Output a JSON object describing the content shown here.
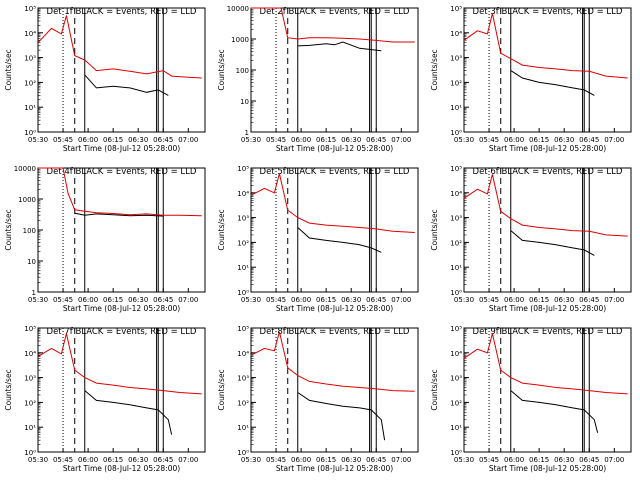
{
  "figure": {
    "xlabel": "Start Time (08-Jul-12 05:28:00)",
    "ylabel": "Counts/sec",
    "xticks": [
      "05:30",
      "05:45",
      "06:00",
      "06:15",
      "06:30",
      "06:45",
      "07:00"
    ],
    "colors": {
      "events": "#000000",
      "lld": "#e00000",
      "axes": "#000000"
    }
  },
  "chart_data": [
    {
      "type": "line",
      "title": "Det 1f BLACK = Events, RED = LLD",
      "log_y": true,
      "xlim": [
        "05:30",
        "07:10"
      ],
      "ylim": [
        1,
        100000
      ],
      "yticks": [
        "10⁰",
        "10¹",
        "10²",
        "10³",
        "10⁴",
        "10⁵"
      ],
      "vlines": {
        "dotted": "05:45",
        "dashed": "05:52",
        "solid": [
          "05:58",
          "06:41",
          "06:42",
          "06:45"
        ]
      },
      "series": [
        {
          "name": "BLACK = Events",
          "x": [
            "05:30",
            "05:40",
            "05:46",
            "05:50",
            "05:52",
            "05:58",
            "06:05",
            "06:15",
            "06:25",
            "06:35",
            "06:42",
            "06:48"
          ],
          "values": [
            null,
            null,
            null,
            null,
            null,
            200,
            60,
            70,
            60,
            40,
            50,
            30
          ]
        },
        {
          "name": "RED = LLD",
          "x": [
            "05:30",
            "05:38",
            "05:44",
            "05:47",
            "05:52",
            "05:58",
            "06:05",
            "06:15",
            "06:25",
            "06:35",
            "06:45",
            "06:50",
            "07:00",
            "07:08"
          ],
          "values": [
            4000,
            15000,
            9000,
            50000,
            1200,
            800,
            300,
            350,
            280,
            220,
            300,
            180,
            160,
            150
          ]
        }
      ]
    },
    {
      "type": "line",
      "title": "Det 2f BLACK = Events, RED = LLD",
      "log_y": true,
      "xlim": [
        "05:30",
        "07:10"
      ],
      "ylim": [
        1,
        10000
      ],
      "yticks": [
        "1",
        "10",
        "100",
        "1000",
        "10000"
      ],
      "vlines": {
        "dotted": "05:45",
        "dashed": "05:52",
        "solid": [
          "05:58",
          "06:41",
          "06:42",
          "06:45"
        ]
      },
      "series": [
        {
          "name": "BLACK = Events",
          "x": [
            "05:58",
            "06:05",
            "06:15",
            "06:20",
            "06:25",
            "06:35",
            "06:48"
          ],
          "values": [
            600,
            620,
            700,
            650,
            800,
            500,
            420
          ]
        },
        {
          "name": "RED = LLD",
          "x": [
            "05:30",
            "05:48",
            "05:52",
            "05:58",
            "06:05",
            "06:15",
            "06:25",
            "06:35",
            "06:45",
            "06:55",
            "07:08"
          ],
          "values": [
            10000,
            10000,
            1100,
            1000,
            1100,
            1100,
            1050,
            1000,
            900,
            800,
            800
          ]
        }
      ]
    },
    {
      "type": "line",
      "title": "Det 3f BLACK = Events, RED = LLD",
      "log_y": true,
      "xlim": [
        "05:30",
        "07:10"
      ],
      "ylim": [
        1,
        100000
      ],
      "yticks": [
        "10⁰",
        "10¹",
        "10²",
        "10³",
        "10⁴",
        "10⁵"
      ],
      "vlines": {
        "dotted": "05:45",
        "dashed": "05:52",
        "solid": [
          "05:58",
          "06:41",
          "06:42",
          "06:45"
        ]
      },
      "series": [
        {
          "name": "BLACK = Events",
          "x": [
            "05:58",
            "06:05",
            "06:15",
            "06:25",
            "06:35",
            "06:42",
            "06:48"
          ],
          "values": [
            300,
            150,
            100,
            80,
            60,
            50,
            30
          ]
        },
        {
          "name": "RED = LLD",
          "x": [
            "05:30",
            "05:38",
            "05:44",
            "05:47",
            "05:52",
            "05:58",
            "06:05",
            "06:15",
            "06:25",
            "06:35",
            "06:45",
            "06:55",
            "07:08"
          ],
          "values": [
            5000,
            12000,
            9000,
            60000,
            1500,
            900,
            500,
            400,
            350,
            300,
            280,
            180,
            150
          ]
        }
      ]
    },
    {
      "type": "line",
      "title": "Det 4f BLACK = Events, RED = LLD",
      "log_y": true,
      "xlim": [
        "05:30",
        "07:10"
      ],
      "ylim": [
        1,
        10000
      ],
      "yticks": [
        "1",
        "10",
        "100",
        "1000",
        "10000"
      ],
      "vlines": {
        "dotted": "05:45",
        "dashed": "05:52",
        "solid": [
          "05:58",
          "06:41",
          "06:42",
          "06:45"
        ]
      },
      "series": [
        {
          "name": "BLACK = Events",
          "x": [
            "05:52",
            "05:58",
            "06:05",
            "06:15",
            "06:25",
            "06:35",
            "06:45"
          ],
          "values": [
            350,
            300,
            330,
            310,
            290,
            300,
            280
          ]
        },
        {
          "name": "RED = LLD",
          "x": [
            "05:30",
            "05:45",
            "05:48",
            "05:52",
            "05:58",
            "06:05",
            "06:15",
            "06:25",
            "06:35",
            "06:45",
            "06:55",
            "07:08"
          ],
          "values": [
            10000,
            10000,
            1500,
            450,
            400,
            360,
            340,
            310,
            330,
            300,
            300,
            290
          ]
        }
      ]
    },
    {
      "type": "line",
      "title": "Det 5f BLACK = Events, RED = LLD",
      "log_y": true,
      "xlim": [
        "05:30",
        "07:10"
      ],
      "ylim": [
        1,
        100000
      ],
      "yticks": [
        "10⁰",
        "10¹",
        "10²",
        "10³",
        "10⁴",
        "10⁵"
      ],
      "vlines": {
        "dotted": "05:45",
        "dashed": "05:52",
        "solid": [
          "05:58",
          "06:41",
          "06:42",
          "06:45"
        ]
      },
      "series": [
        {
          "name": "BLACK = Events",
          "x": [
            "05:58",
            "06:05",
            "06:15",
            "06:25",
            "06:35",
            "06:42",
            "06:48"
          ],
          "values": [
            400,
            150,
            120,
            100,
            80,
            60,
            40
          ]
        },
        {
          "name": "RED = LLD",
          "x": [
            "05:30",
            "05:38",
            "05:44",
            "05:47",
            "05:52",
            "05:58",
            "06:05",
            "06:15",
            "06:25",
            "06:35",
            "06:45",
            "06:55",
            "07:08"
          ],
          "values": [
            8000,
            15000,
            10000,
            60000,
            2000,
            1000,
            600,
            500,
            450,
            400,
            350,
            280,
            250
          ]
        }
      ]
    },
    {
      "type": "line",
      "title": "Det 6f BLACK = Events, RED = LLD",
      "log_y": true,
      "xlim": [
        "05:30",
        "07:10"
      ],
      "ylim": [
        1,
        100000
      ],
      "yticks": [
        "10⁰",
        "10¹",
        "10²",
        "10³",
        "10⁴",
        "10⁵"
      ],
      "vlines": {
        "dotted": "05:45",
        "dashed": "05:52",
        "solid": [
          "05:58",
          "06:41",
          "06:42",
          "06:45"
        ]
      },
      "series": [
        {
          "name": "BLACK = Events",
          "x": [
            "05:58",
            "06:05",
            "06:15",
            "06:25",
            "06:35",
            "06:42",
            "06:48"
          ],
          "values": [
            300,
            120,
            100,
            80,
            60,
            50,
            30
          ]
        },
        {
          "name": "RED = LLD",
          "x": [
            "05:30",
            "05:38",
            "05:44",
            "05:47",
            "05:52",
            "05:58",
            "06:05",
            "06:15",
            "06:25",
            "06:35",
            "06:45",
            "06:55",
            "07:08"
          ],
          "values": [
            6000,
            14000,
            9000,
            55000,
            1800,
            900,
            500,
            400,
            350,
            300,
            280,
            200,
            180
          ]
        }
      ]
    },
    {
      "type": "line",
      "title": "Det 7f BLACK = Events, RED = LLD",
      "log_y": true,
      "xlim": [
        "05:30",
        "07:10"
      ],
      "ylim": [
        1,
        100000
      ],
      "yticks": [
        "10⁰",
        "10¹",
        "10²",
        "10³",
        "10⁴",
        "10⁵"
      ],
      "vlines": {
        "dotted": "05:45",
        "dashed": "05:52",
        "solid": [
          "05:58",
          "06:41",
          "06:42",
          "06:45"
        ]
      },
      "series": [
        {
          "name": "BLACK = Events",
          "x": [
            "05:58",
            "06:05",
            "06:15",
            "06:25",
            "06:35",
            "06:42",
            "06:48",
            "06:50"
          ],
          "values": [
            300,
            120,
            100,
            80,
            60,
            50,
            20,
            5
          ]
        },
        {
          "name": "RED = LLD",
          "x": [
            "05:30",
            "05:38",
            "05:44",
            "05:47",
            "05:52",
            "05:58",
            "06:05",
            "06:15",
            "06:25",
            "06:35",
            "06:45",
            "06:55",
            "07:08"
          ],
          "values": [
            7000,
            15000,
            9000,
            60000,
            2000,
            1000,
            600,
            500,
            400,
            350,
            300,
            250,
            220
          ]
        }
      ]
    },
    {
      "type": "line",
      "title": "Det 8f BLACK = Events, RED = LLD",
      "log_y": true,
      "xlim": [
        "05:30",
        "07:10"
      ],
      "ylim": [
        1,
        100000
      ],
      "yticks": [
        "10⁰",
        "10¹",
        "10²",
        "10³",
        "10⁴",
        "10⁵"
      ],
      "vlines": {
        "dotted": "05:45",
        "dashed": "05:52",
        "solid": [
          "05:58",
          "06:41",
          "06:42",
          "06:45"
        ]
      },
      "series": [
        {
          "name": "BLACK = Events",
          "x": [
            "05:58",
            "06:05",
            "06:15",
            "06:25",
            "06:35",
            "06:42",
            "06:48",
            "06:50"
          ],
          "values": [
            250,
            120,
            90,
            70,
            60,
            50,
            20,
            3
          ]
        },
        {
          "name": "RED = LLD",
          "x": [
            "05:30",
            "05:38",
            "05:44",
            "05:47",
            "05:52",
            "05:58",
            "06:05",
            "06:15",
            "06:25",
            "06:35",
            "06:45",
            "06:55",
            "07:08"
          ],
          "values": [
            8000,
            15000,
            12000,
            70000,
            2500,
            1200,
            700,
            550,
            450,
            400,
            350,
            300,
            280
          ]
        }
      ]
    },
    {
      "type": "line",
      "title": "Det 9f BLACK = Events, RED = LLD",
      "log_y": true,
      "xlim": [
        "05:30",
        "07:10"
      ],
      "ylim": [
        1,
        100000
      ],
      "yticks": [
        "10⁰",
        "10¹",
        "10²",
        "10³",
        "10⁴",
        "10⁵"
      ],
      "vlines": {
        "dotted": "05:45",
        "dashed": "05:52",
        "solid": [
          "05:58",
          "06:41",
          "06:42",
          "06:45"
        ]
      },
      "series": [
        {
          "name": "BLACK = Events",
          "x": [
            "05:58",
            "06:05",
            "06:15",
            "06:25",
            "06:35",
            "06:42",
            "06:48",
            "06:50"
          ],
          "values": [
            300,
            120,
            100,
            80,
            60,
            50,
            20,
            6
          ]
        },
        {
          "name": "RED = LLD",
          "x": [
            "05:30",
            "05:38",
            "05:44",
            "05:47",
            "05:52",
            "05:58",
            "06:05",
            "06:15",
            "06:25",
            "06:35",
            "06:45",
            "06:55",
            "07:08"
          ],
          "values": [
            6000,
            14000,
            10000,
            60000,
            2000,
            1000,
            600,
            500,
            400,
            350,
            300,
            250,
            220
          ]
        }
      ]
    }
  ]
}
